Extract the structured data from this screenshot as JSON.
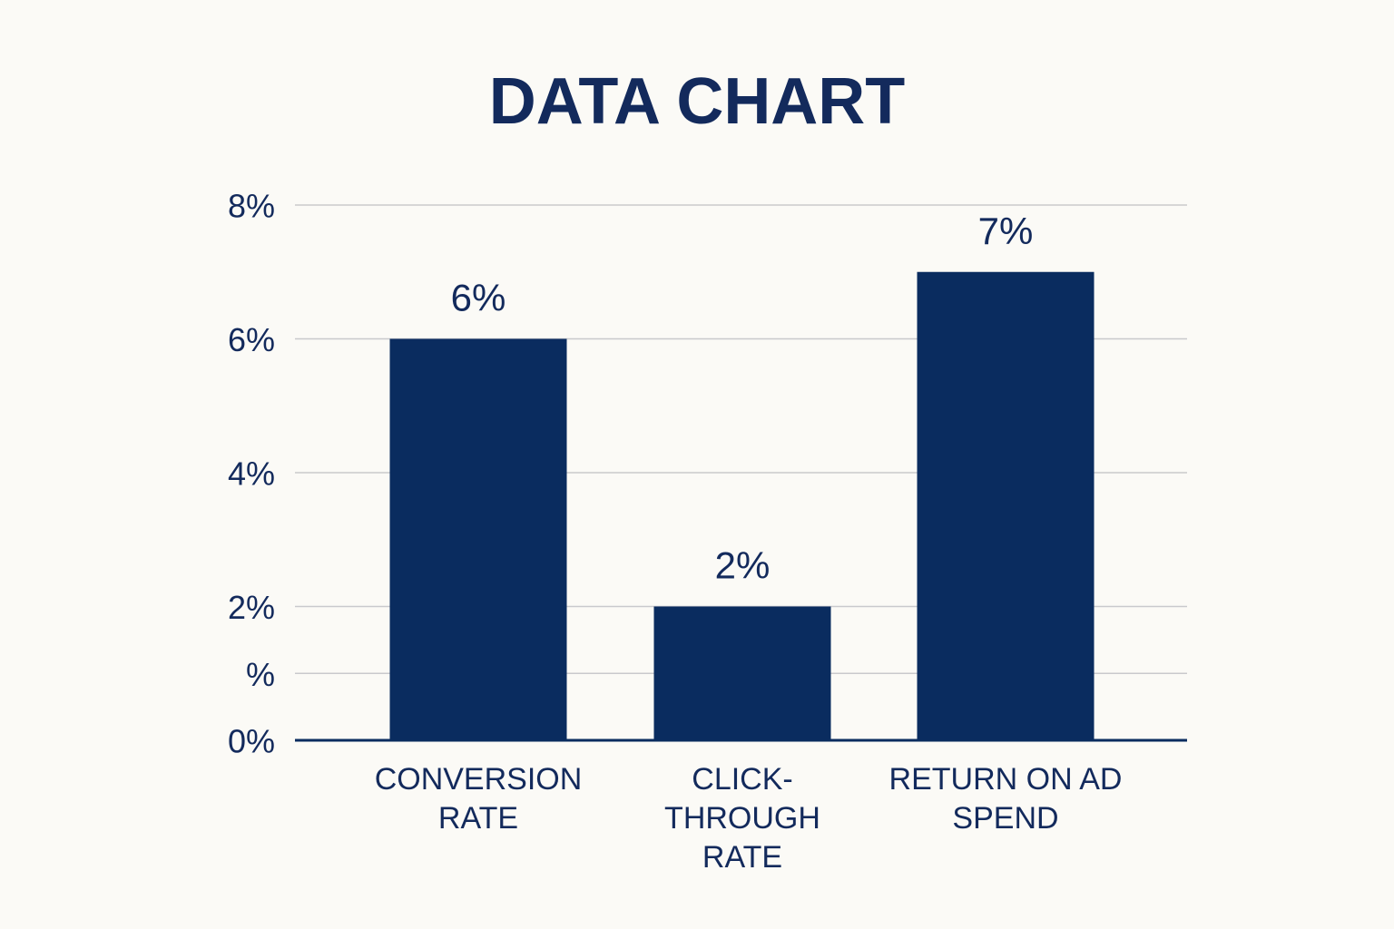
{
  "chart_data": {
    "type": "bar",
    "title": "DATA CHART",
    "categories": [
      "CONVERSION RATE",
      "CLICK-THROUGH RATE",
      "RETURN ON AD SPEND"
    ],
    "values": [
      6,
      2,
      7
    ],
    "value_labels": [
      "6%",
      "2%",
      "7%"
    ],
    "color": "#0a2c5f",
    "ylim": [
      0,
      8
    ],
    "yticks": [
      {
        "value": 0,
        "label": "0%"
      },
      {
        "value": 1,
        "label": "%"
      },
      {
        "value": 2,
        "label": "2%"
      },
      {
        "value": 4,
        "label": "4%"
      },
      {
        "value": 6,
        "label": "6%"
      },
      {
        "value": 8,
        "label": "8%"
      }
    ],
    "grid": true
  }
}
